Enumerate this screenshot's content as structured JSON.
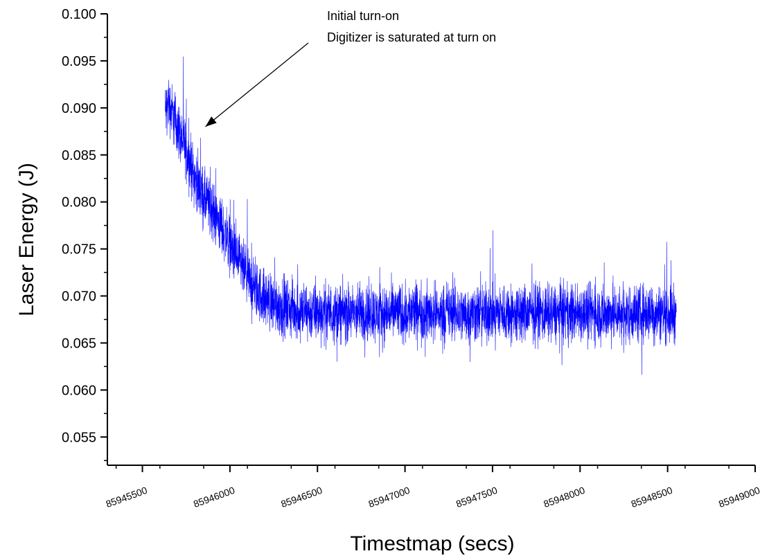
{
  "chart_data": {
    "type": "line",
    "title": "",
    "xlabel": "Timestmap (secs)",
    "ylabel": "Laser Energy (J)",
    "xlim": [
      85945300,
      85949000
    ],
    "ylim": [
      0.052,
      0.1
    ],
    "x_ticks": [
      85945500,
      85946000,
      85946500,
      85947000,
      85947500,
      85948000,
      85948500,
      85949000
    ],
    "x_tick_labels": [
      "85945500",
      "85946000",
      "85946500",
      "85947000",
      "85947500",
      "85948000",
      "85948500",
      "85949000"
    ],
    "y_ticks": [
      0.055,
      0.06,
      0.065,
      0.07,
      0.075,
      0.08,
      0.085,
      0.09,
      0.095,
      0.1
    ],
    "y_tick_labels": [
      "0.055",
      "0.060",
      "0.065",
      "0.070",
      "0.075",
      "0.080",
      "0.085",
      "0.090",
      "0.095",
      "0.100"
    ],
    "grid": false,
    "series": [
      {
        "color": "#0000ff",
        "x": [
          85945630,
          85945650,
          85945700,
          85945750,
          85945800,
          85945850,
          85945900,
          85945950,
          85946000,
          85946050,
          85946100,
          85946150,
          85946200,
          85946250,
          85946300,
          85946350,
          85946400,
          85946450,
          85946500,
          85946550,
          85946600,
          85946650,
          85946700,
          85946750,
          85946800,
          85946850,
          85946900,
          85946950,
          85947000,
          85947050,
          85947100,
          85947150,
          85947200,
          85947250,
          85947300,
          85947350,
          85947400,
          85947450,
          85947500,
          85947550,
          85947600,
          85947650,
          85947700,
          85947750,
          85947800,
          85947850,
          85947900,
          85947950,
          85948000,
          85948050,
          85948100,
          85948150,
          85948200,
          85948250,
          85948300,
          85948350,
          85948400,
          85948450,
          85948500,
          85948550
        ],
        "y": [
          0.0895,
          0.0905,
          0.088,
          0.0855,
          0.0825,
          0.0805,
          0.079,
          0.0775,
          0.0755,
          0.0735,
          0.072,
          0.0705,
          0.0698,
          0.0692,
          0.0688,
          0.0686,
          0.0684,
          0.0683,
          0.0682,
          0.0683,
          0.0682,
          0.0682,
          0.0681,
          0.0682,
          0.0683,
          0.068,
          0.0682,
          0.0683,
          0.0681,
          0.0683,
          0.0682,
          0.0682,
          0.0681,
          0.0683,
          0.0682,
          0.068,
          0.0682,
          0.0681,
          0.0683,
          0.0682,
          0.0681,
          0.068,
          0.0682,
          0.0683,
          0.0682,
          0.0681,
          0.0682,
          0.0681,
          0.0683,
          0.0682,
          0.0682,
          0.0681,
          0.0682,
          0.068,
          0.0682,
          0.0681,
          0.0683,
          0.0682,
          0.0681,
          0.0682
        ],
        "noise_amplitude": 0.0045
      }
    ],
    "annotation": {
      "lines": [
        "Initial turn-on",
        "Digitizer is saturated at turn on"
      ],
      "arrow_to": [
        85945860,
        0.088
      ]
    }
  }
}
